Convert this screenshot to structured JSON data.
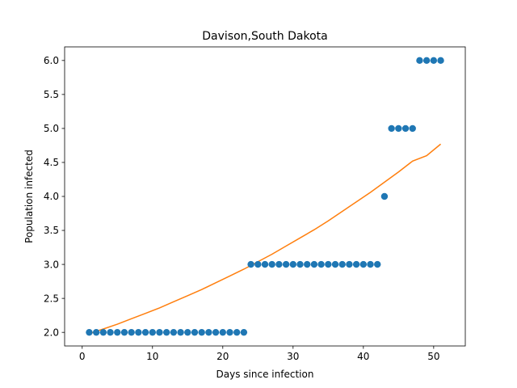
{
  "chart_data": {
    "type": "scatter",
    "title": "Davison,South Dakota",
    "xlabel": "Days since infection",
    "ylabel": "Population infected",
    "xlim": [
      -2.5,
      54.5
    ],
    "ylim": [
      1.8,
      6.2
    ],
    "xticks": [
      0,
      10,
      20,
      30,
      40,
      50
    ],
    "yticks": [
      2.0,
      2.5,
      3.0,
      3.5,
      4.0,
      4.5,
      5.0,
      5.5,
      6.0
    ],
    "ytick_labels": [
      "2.0",
      "2.5",
      "3.0",
      "3.5",
      "4.0",
      "4.5",
      "5.0",
      "5.5",
      "6.0"
    ],
    "grid": false,
    "series": [
      {
        "kind": "scatter",
        "color": "#1f77b4",
        "x": [
          1,
          2,
          3,
          4,
          5,
          6,
          7,
          8,
          9,
          10,
          11,
          12,
          13,
          14,
          15,
          16,
          17,
          18,
          19,
          20,
          21,
          22,
          23,
          24,
          25,
          26,
          27,
          28,
          29,
          30,
          31,
          32,
          33,
          34,
          35,
          36,
          37,
          38,
          39,
          40,
          41,
          42,
          43,
          44,
          45,
          46,
          47,
          48,
          49,
          50,
          51
        ],
        "y": [
          2,
          2,
          2,
          2,
          2,
          2,
          2,
          2,
          2,
          2,
          2,
          2,
          2,
          2,
          2,
          2,
          2,
          2,
          2,
          2,
          2,
          2,
          2,
          3,
          3,
          3,
          3,
          3,
          3,
          3,
          3,
          3,
          3,
          3,
          3,
          3,
          3,
          3,
          3,
          3,
          3,
          3,
          4,
          5,
          5,
          5,
          5,
          6,
          6,
          6,
          6
        ]
      },
      {
        "kind": "line",
        "color": "#ff7f0e",
        "x": [
          1,
          3,
          5,
          7,
          9,
          11,
          13,
          15,
          17,
          19,
          21,
          23,
          25,
          27,
          29,
          31,
          33,
          35,
          37,
          39,
          41,
          43,
          45,
          47,
          49,
          51
        ],
        "y": [
          1.98,
          2.05,
          2.12,
          2.2,
          2.28,
          2.36,
          2.45,
          2.54,
          2.63,
          2.73,
          2.83,
          2.93,
          3.04,
          3.15,
          3.27,
          3.39,
          3.51,
          3.64,
          3.78,
          3.92,
          4.06,
          4.21,
          4.36,
          4.52,
          4.6,
          4.77
        ]
      }
    ]
  }
}
